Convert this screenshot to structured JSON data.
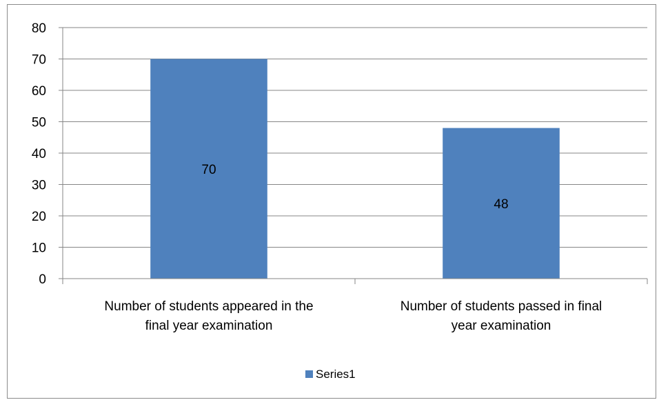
{
  "chart_data": {
    "type": "bar",
    "categories": [
      [
        "Number of students appeared in the",
        "final year examination"
      ],
      [
        "Number of students passed in final",
        "year examination"
      ]
    ],
    "series": [
      {
        "name": "Series1",
        "values": [
          70,
          48
        ],
        "color": "#4F81BD"
      }
    ],
    "data_labels": [
      "70",
      "48"
    ],
    "ylim": [
      0,
      80
    ],
    "yticks": [
      0,
      10,
      20,
      30,
      40,
      50,
      60,
      70,
      80
    ],
    "grid": true,
    "legend": {
      "position": "bottom",
      "entries": [
        "Series1"
      ]
    },
    "title": "",
    "xlabel": "",
    "ylabel": ""
  }
}
